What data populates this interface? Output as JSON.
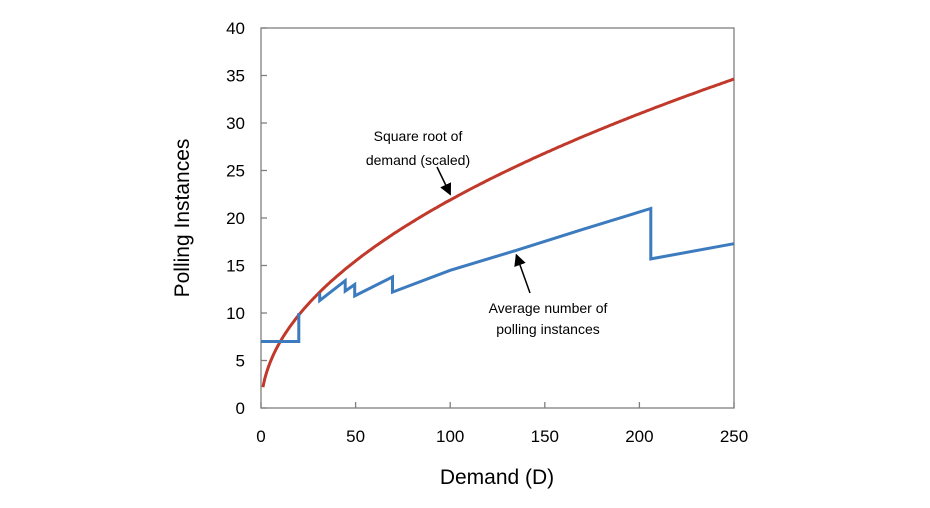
{
  "chart_data": {
    "type": "line",
    "title": "",
    "xlabel": "Demand (D)",
    "ylabel": "Polling Instances",
    "xlim": [
      0,
      250
    ],
    "ylim": [
      0,
      40
    ],
    "xticks": [
      0,
      50,
      100,
      150,
      200,
      250
    ],
    "yticks": [
      0,
      5,
      10,
      15,
      20,
      25,
      30,
      35,
      40
    ],
    "grid": false,
    "legend": "none",
    "series": [
      {
        "color": "#c0392b",
        "function": "2.19*sqrt(D)",
        "x": [
          1,
          5,
          10,
          20,
          30,
          40,
          50,
          60,
          70,
          80,
          90,
          100,
          120,
          140,
          160,
          180,
          200,
          220,
          240,
          250
        ],
        "y": [
          2.2,
          4.9,
          6.9,
          9.8,
          12.0,
          13.9,
          15.5,
          17.0,
          18.3,
          19.6,
          20.8,
          21.9,
          24.0,
          25.9,
          27.7,
          29.4,
          31.0,
          32.5,
          33.9,
          34.6
        ]
      },
      {
        "color": "#3d7bbf",
        "segments": [
          {
            "x": [
              0,
              20,
              20
            ],
            "y": [
              7,
              7,
              10
            ]
          },
          {
            "x": [
              31,
              31,
              44.5,
              44.5,
              49.5,
              49.5,
              69.5,
              69.5,
              100,
              135,
              170,
              206,
              206,
              250
            ],
            "y": [
              12.1,
              11.3,
              13.4,
              12.3,
              13.0,
              11.8,
              13.8,
              12.2,
              14.5,
              16.6,
              18.8,
              21.0,
              15.7,
              17.3
            ]
          }
        ]
      }
    ],
    "annotations": [
      {
        "lines": [
          "Square root of",
          "demand (scaled)"
        ],
        "points_to": [
          100,
          22.5
        ]
      },
      {
        "lines": [
          "Average number of",
          "polling instances"
        ],
        "points_to": [
          135,
          16.1
        ]
      }
    ]
  }
}
